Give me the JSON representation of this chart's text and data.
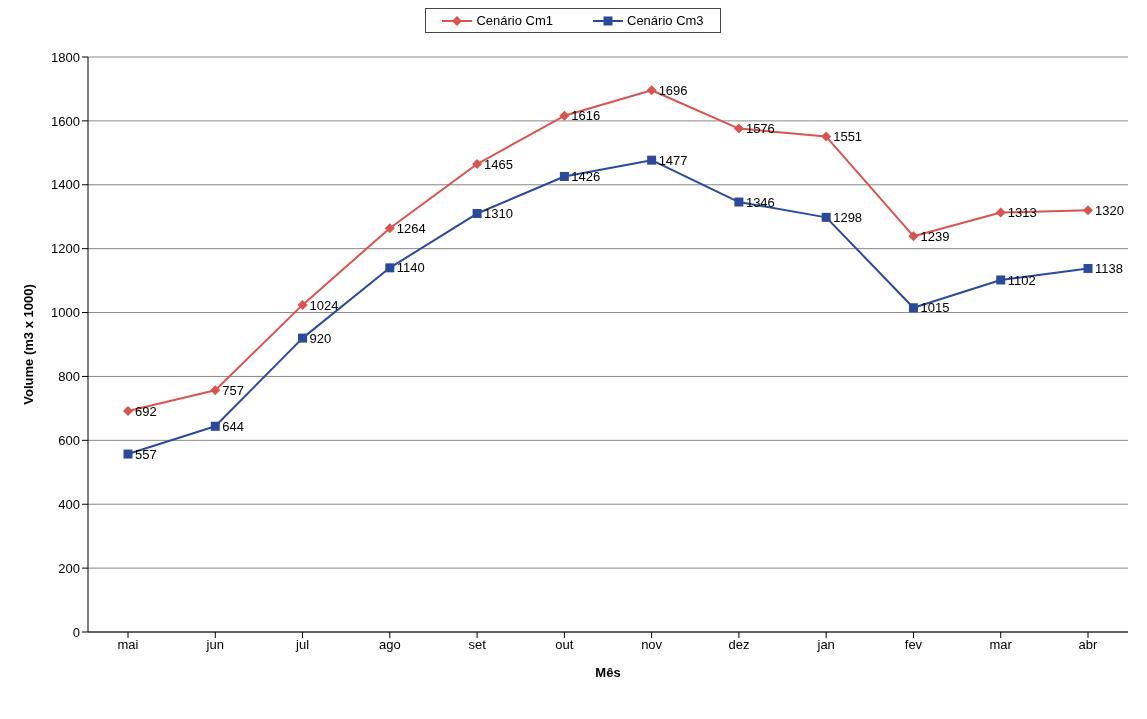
{
  "chart_data": {
    "type": "line",
    "xlabel": "Mês",
    "ylabel": "Volume (m3 x 1000)",
    "categories": [
      "mai",
      "jun",
      "jul",
      "ago",
      "set",
      "out",
      "nov",
      "dez",
      "jan",
      "fev",
      "mar",
      "abr"
    ],
    "series": [
      {
        "name": "Cenário Cm1",
        "color": "#d9534f",
        "marker": "diamond",
        "values": [
          692,
          757,
          1024,
          1264,
          1465,
          1616,
          1696,
          1576,
          1551,
          1239,
          1313,
          1320
        ]
      },
      {
        "name": "Cenário Cm3",
        "color": "#2b4a9b",
        "marker": "square",
        "values": [
          557,
          644,
          920,
          1140,
          1310,
          1426,
          1477,
          1346,
          1298,
          1015,
          1102,
          1138
        ]
      }
    ],
    "ylim": [
      0,
      1800
    ],
    "yticks": [
      0,
      200,
      400,
      600,
      800,
      1000,
      1200,
      1400,
      1600,
      1800
    ],
    "grid": "y",
    "legend": "top",
    "data_labels": true,
    "line_style": "solid"
  }
}
